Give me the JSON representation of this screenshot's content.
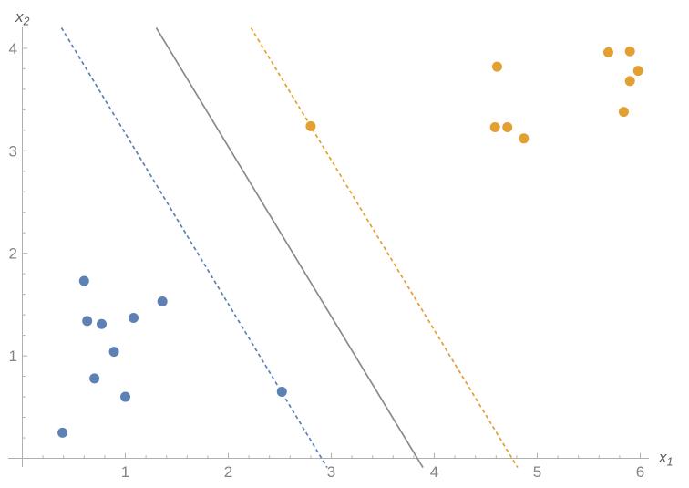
{
  "chart_data": {
    "type": "scatter",
    "title": "",
    "xlabel": {
      "base": "x",
      "sub": "1"
    },
    "ylabel": {
      "base": "x",
      "sub": "2"
    },
    "xlim": [
      0,
      6.08
    ],
    "ylim": [
      0,
      4.2
    ],
    "x_major_ticks": [
      1,
      2,
      3,
      4,
      5,
      6
    ],
    "y_major_ticks": [
      1,
      2,
      3,
      4
    ],
    "minor_tick_step": 0.2,
    "grid": false,
    "legend": false,
    "axis_color": "#b0b0b0",
    "tick_label_color": "#848484",
    "axis_label_color": "#5f5f5f",
    "series": [
      {
        "name": "blue-class-points",
        "color": "#5e81b5",
        "marker": "circle",
        "points": [
          [
            0.39,
            0.25
          ],
          [
            0.6,
            1.73
          ],
          [
            0.63,
            1.34
          ],
          [
            0.7,
            0.78
          ],
          [
            0.77,
            1.31
          ],
          [
            0.89,
            1.04
          ],
          [
            1.0,
            0.6
          ],
          [
            1.08,
            1.37
          ],
          [
            1.36,
            1.53
          ],
          [
            2.52,
            0.65
          ]
        ]
      },
      {
        "name": "orange-class-points",
        "color": "#e2a033",
        "marker": "circle",
        "points": [
          [
            2.8,
            3.24
          ],
          [
            4.59,
            3.23
          ],
          [
            4.61,
            3.82
          ],
          [
            4.71,
            3.23
          ],
          [
            4.87,
            3.12
          ],
          [
            5.69,
            3.96
          ],
          [
            5.84,
            3.38
          ],
          [
            5.9,
            3.68
          ],
          [
            5.9,
            3.97
          ],
          [
            5.98,
            3.78
          ]
        ]
      }
    ],
    "lines": [
      {
        "name": "blue-margin-line",
        "color": "#5e81b5",
        "dashed": true,
        "from": [
          0.38,
          4.2
        ],
        "to": [
          2.96,
          -0.09
        ]
      },
      {
        "name": "decision-boundary-line",
        "color": "#8a8a8a",
        "dashed": false,
        "from": [
          1.3,
          4.2
        ],
        "to": [
          3.89,
          -0.09
        ]
      },
      {
        "name": "orange-margin-line",
        "color": "#e2a033",
        "dashed": true,
        "from": [
          2.22,
          4.2
        ],
        "to": [
          4.81,
          -0.09
        ]
      }
    ],
    "support_vectors": [
      [
        2.52,
        0.65
      ],
      [
        2.8,
        3.24
      ]
    ]
  }
}
